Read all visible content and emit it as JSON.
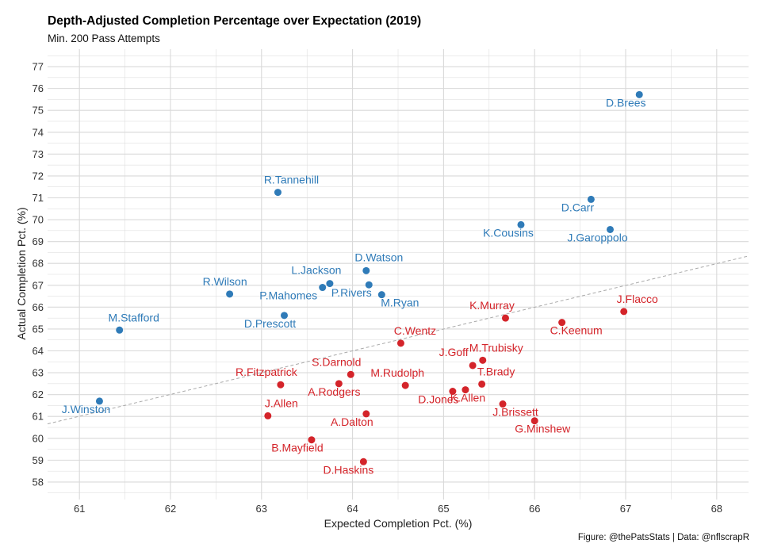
{
  "chart_data": {
    "type": "scatter",
    "title": "Depth-Adjusted Completion Percentage over Expectation (2019)",
    "subtitle": "Min. 200 Pass Attempts",
    "caption": "Figure: @thePatsStats | Data: @nflscrapR",
    "xlabel": "Expected Completion Pct. (%)",
    "ylabel": "Actual Completion Pct. (%)",
    "xlim": [
      60.65,
      68.35
    ],
    "ylim": [
      57.2,
      77.8
    ],
    "x_ticks": [
      61,
      62,
      63,
      64,
      65,
      66,
      67,
      68
    ],
    "y_ticks": [
      58,
      59,
      60,
      61,
      62,
      63,
      64,
      65,
      66,
      67,
      68,
      69,
      70,
      71,
      72,
      73,
      74,
      75,
      76,
      77
    ],
    "grid": true,
    "legend": "none",
    "colors": {
      "above": "#2f7bb8",
      "below": "#d4242a",
      "grid": "#d9d9d9",
      "reference_line": "#aaaaaa"
    },
    "reference_line": {
      "style": "dashed",
      "from": [
        60.65,
        60.66
      ],
      "to": [
        68.35,
        68.34
      ]
    },
    "points": [
      {
        "label": "D.Brees",
        "x": 67.15,
        "y": 75.72,
        "group": "above"
      },
      {
        "label": "R.Tannehill",
        "x": 63.18,
        "y": 71.25,
        "group": "above"
      },
      {
        "label": "D.Carr",
        "x": 66.62,
        "y": 70.93,
        "group": "above"
      },
      {
        "label": "K.Cousins",
        "x": 65.85,
        "y": 69.77,
        "group": "above"
      },
      {
        "label": "J.Garoppolo",
        "x": 66.83,
        "y": 69.55,
        "group": "above"
      },
      {
        "label": "D.Watson",
        "x": 64.15,
        "y": 67.67,
        "group": "above"
      },
      {
        "label": "L.Jackson",
        "x": 63.75,
        "y": 67.08,
        "group": "above"
      },
      {
        "label": "P.Mahomes",
        "x": 63.67,
        "y": 66.9,
        "group": "above"
      },
      {
        "label": "P.Rivers",
        "x": 64.18,
        "y": 67.02,
        "group": "above"
      },
      {
        "label": "R.Wilson",
        "x": 62.65,
        "y": 66.6,
        "group": "above"
      },
      {
        "label": "M.Ryan",
        "x": 64.32,
        "y": 66.57,
        "group": "above"
      },
      {
        "label": "D.Prescott",
        "x": 63.25,
        "y": 65.62,
        "group": "above"
      },
      {
        "label": "M.Stafford",
        "x": 61.44,
        "y": 64.95,
        "group": "above"
      },
      {
        "label": "J.Winston",
        "x": 61.22,
        "y": 61.7,
        "group": "above"
      },
      {
        "label": "J.Flacco",
        "x": 66.98,
        "y": 65.8,
        "group": "below"
      },
      {
        "label": "K.Murray",
        "x": 65.68,
        "y": 65.5,
        "group": "below"
      },
      {
        "label": "C.Keenum",
        "x": 66.3,
        "y": 65.3,
        "group": "below"
      },
      {
        "label": "C.Wentz",
        "x": 64.53,
        "y": 64.35,
        "group": "below"
      },
      {
        "label": "M.Trubisky",
        "x": 65.43,
        "y": 63.57,
        "group": "below"
      },
      {
        "label": "T.Brady",
        "x": 65.42,
        "y": 62.48,
        "group": "below"
      },
      {
        "label": "J.Goff",
        "x": 65.32,
        "y": 63.33,
        "group": "below"
      },
      {
        "label": "K.Allen",
        "x": 65.24,
        "y": 62.22,
        "group": "below"
      },
      {
        "label": "D.Jones",
        "x": 65.1,
        "y": 62.15,
        "group": "below"
      },
      {
        "label": "J.Brissett",
        "x": 65.65,
        "y": 61.57,
        "group": "below"
      },
      {
        "label": "G.Minshew",
        "x": 66.0,
        "y": 60.8,
        "group": "below"
      },
      {
        "label": "S.Darnold",
        "x": 63.98,
        "y": 62.92,
        "group": "below"
      },
      {
        "label": "R.Fitzpatrick",
        "x": 63.21,
        "y": 62.45,
        "group": "below"
      },
      {
        "label": "A.Rodgers",
        "x": 63.85,
        "y": 62.5,
        "group": "below"
      },
      {
        "label": "M.Rudolph",
        "x": 64.58,
        "y": 62.42,
        "group": "below"
      },
      {
        "label": "J.Allen",
        "x": 63.07,
        "y": 61.03,
        "group": "below"
      },
      {
        "label": "A.Dalton",
        "x": 64.15,
        "y": 61.12,
        "group": "below"
      },
      {
        "label": "B.Mayfield",
        "x": 63.55,
        "y": 59.93,
        "group": "below"
      },
      {
        "label": "D.Haskins",
        "x": 64.12,
        "y": 58.93,
        "group": "below"
      }
    ]
  }
}
